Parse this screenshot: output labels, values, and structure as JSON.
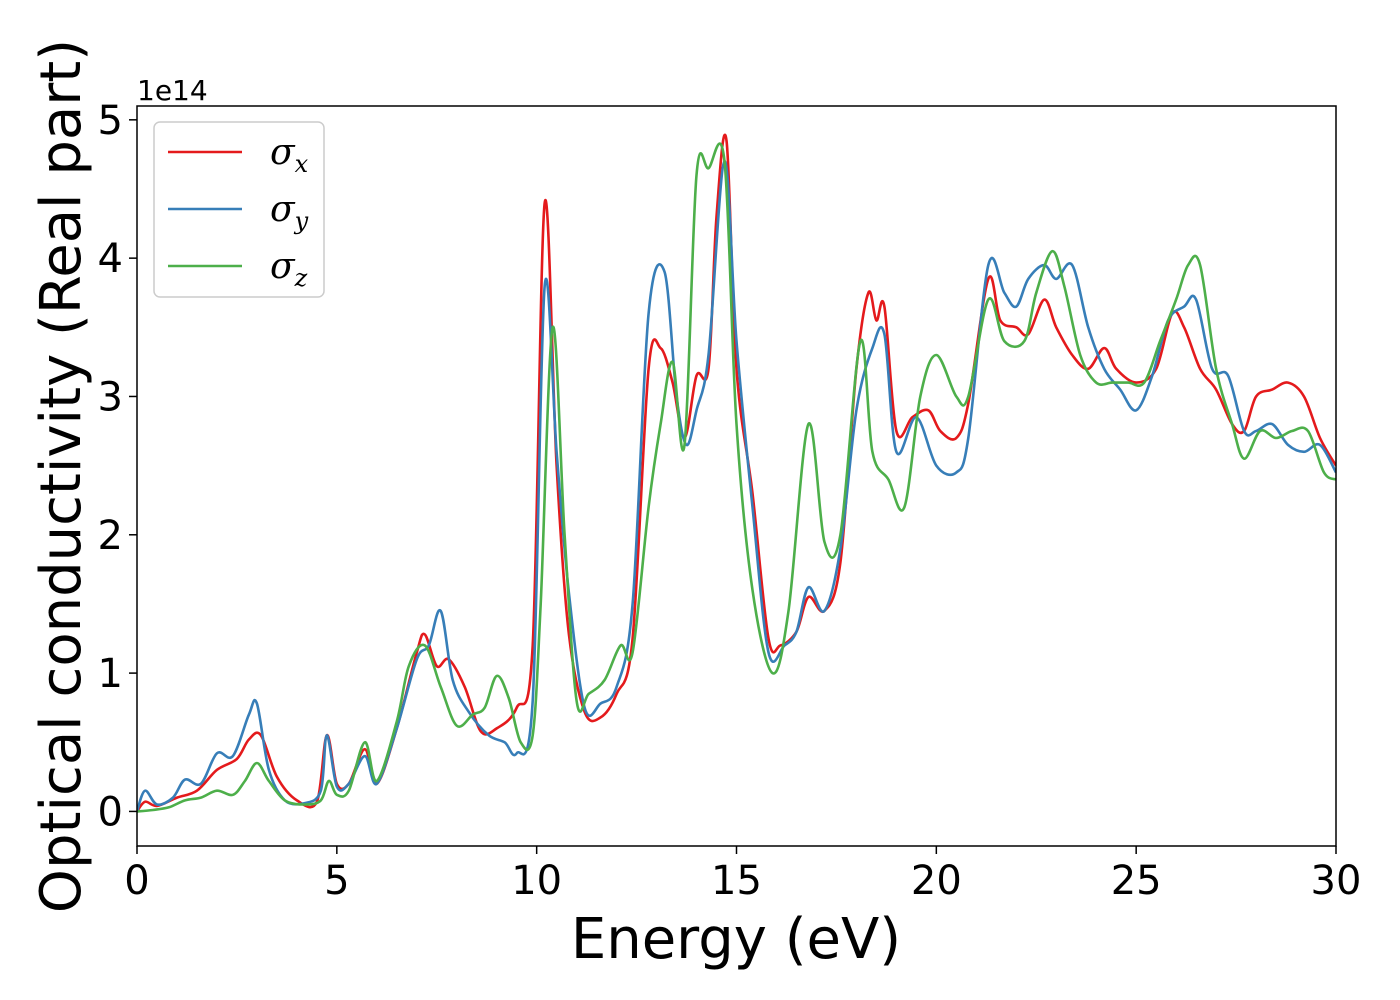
{
  "chart_data": {
    "type": "line",
    "title": "",
    "xlabel": "Energy (eV)",
    "ylabel": "Optical conductivity (Real part)",
    "y_offset_label": "1e14",
    "xlim": [
      0,
      30
    ],
    "ylim": [
      -0.25,
      5.1
    ],
    "xticks": [
      0,
      5,
      10,
      15,
      20,
      25,
      30
    ],
    "yticks": [
      0,
      1,
      2,
      3,
      4,
      5
    ],
    "grid": false,
    "legend_position": "top-left",
    "series": [
      {
        "name": "σx",
        "symbol": "σ",
        "subscript": "x",
        "color": "#e41a1c",
        "x": [
          0,
          0.2,
          0.5,
          1,
          1.5,
          2,
          2.5,
          2.8,
          3.1,
          3.5,
          4,
          4.5,
          4.75,
          5,
          5.3,
          5.7,
          6,
          6.5,
          7,
          7.2,
          7.5,
          7.8,
          8.2,
          8.6,
          9,
          9.5,
          9.9,
          10.2,
          10.5,
          10.8,
          11.2,
          11.6,
          12,
          12.4,
          12.8,
          13.1,
          13.4,
          13.7,
          14,
          14.3,
          14.5,
          14.75,
          15,
          15.4,
          15.8,
          16.1,
          16.5,
          16.8,
          17.2,
          17.6,
          18,
          18.3,
          18.5,
          18.7,
          19,
          19.4,
          19.8,
          20.1,
          20.5,
          20.8,
          21.3,
          21.6,
          22,
          22.3,
          22.7,
          23,
          23.4,
          23.8,
          24.2,
          24.5,
          25,
          25.5,
          25.9,
          26.2,
          26.6,
          27,
          27.4,
          27.7,
          28,
          28.4,
          28.8,
          29.2,
          29.6,
          30
        ],
        "y": [
          0,
          0.07,
          0.04,
          0.1,
          0.15,
          0.3,
          0.38,
          0.52,
          0.55,
          0.25,
          0.08,
          0.07,
          0.55,
          0.2,
          0.2,
          0.45,
          0.2,
          0.6,
          1.15,
          1.28,
          1.05,
          1.1,
          0.9,
          0.58,
          0.6,
          0.75,
          1.2,
          4.4,
          2.5,
          1.3,
          0.72,
          0.68,
          0.85,
          1.25,
          3.2,
          3.35,
          3.1,
          2.7,
          3.15,
          3.2,
          4.3,
          4.85,
          3.2,
          2.3,
          1.25,
          1.2,
          1.3,
          1.55,
          1.45,
          1.8,
          3.2,
          3.75,
          3.55,
          3.65,
          2.75,
          2.85,
          2.9,
          2.75,
          2.7,
          2.95,
          3.85,
          3.55,
          3.5,
          3.45,
          3.7,
          3.5,
          3.3,
          3.2,
          3.35,
          3.2,
          3.1,
          3.2,
          3.6,
          3.5,
          3.2,
          3.05,
          2.8,
          2.75,
          3.0,
          3.05,
          3.1,
          3.0,
          2.7,
          2.5
        ]
      },
      {
        "name": "σy",
        "symbol": "σ",
        "subscript": "y",
        "color": "#377eb8",
        "x": [
          0,
          0.2,
          0.5,
          0.9,
          1.2,
          1.6,
          2,
          2.4,
          2.8,
          3,
          3.3,
          3.7,
          4.2,
          4.6,
          4.75,
          5,
          5.3,
          5.7,
          6,
          6.5,
          7,
          7.3,
          7.6,
          7.9,
          8.3,
          8.8,
          9.2,
          9.5,
          9.9,
          10.2,
          10.5,
          10.8,
          11.2,
          11.6,
          12,
          12.4,
          12.8,
          13.2,
          13.5,
          13.75,
          14,
          14.3,
          14.7,
          15,
          15.4,
          15.8,
          16.2,
          16.5,
          16.8,
          17.2,
          17.6,
          18,
          18.4,
          18.7,
          19,
          19.5,
          20,
          20.5,
          20.8,
          21.3,
          21.7,
          22,
          22.3,
          22.7,
          23,
          23.4,
          23.8,
          24.2,
          24.6,
          25,
          25.4,
          25.8,
          26.2,
          26.5,
          26.9,
          27.3,
          27.7,
          28,
          28.4,
          28.8,
          29.2,
          29.6,
          30
        ],
        "y": [
          0,
          0.15,
          0.05,
          0.1,
          0.23,
          0.2,
          0.42,
          0.4,
          0.7,
          0.78,
          0.3,
          0.08,
          0.06,
          0.15,
          0.55,
          0.18,
          0.2,
          0.4,
          0.2,
          0.6,
          1.1,
          1.2,
          1.45,
          0.95,
          0.72,
          0.55,
          0.5,
          0.42,
          0.8,
          3.8,
          2.6,
          1.6,
          0.75,
          0.78,
          0.9,
          1.5,
          3.6,
          3.9,
          3.0,
          2.65,
          2.9,
          3.3,
          4.7,
          3.4,
          2.2,
          1.15,
          1.2,
          1.3,
          1.62,
          1.45,
          1.9,
          2.9,
          3.35,
          3.45,
          2.6,
          2.85,
          2.5,
          2.45,
          2.7,
          3.95,
          3.75,
          3.65,
          3.85,
          3.95,
          3.85,
          3.95,
          3.5,
          3.2,
          3.05,
          2.9,
          3.15,
          3.55,
          3.65,
          3.7,
          3.2,
          3.15,
          2.75,
          2.75,
          2.8,
          2.65,
          2.6,
          2.65,
          2.45
        ]
      },
      {
        "name": "σz",
        "symbol": "σ",
        "subscript": "z",
        "color": "#4daf4a",
        "x": [
          0,
          0.4,
          0.8,
          1.2,
          1.6,
          2,
          2.4,
          2.7,
          3,
          3.3,
          3.7,
          4.2,
          4.6,
          4.8,
          5,
          5.3,
          5.7,
          6,
          6.5,
          6.8,
          7.2,
          7.6,
          8,
          8.4,
          8.7,
          9,
          9.3,
          9.6,
          9.9,
          10.1,
          10.4,
          10.7,
          11,
          11.3,
          11.7,
          12.1,
          12.4,
          12.8,
          13.1,
          13.4,
          13.7,
          14,
          14.3,
          14.7,
          15,
          15.4,
          15.9,
          16.3,
          16.8,
          17.2,
          17.6,
          18.1,
          18.4,
          18.8,
          19.2,
          19.6,
          20,
          20.5,
          20.8,
          21.3,
          21.7,
          22.2,
          22.5,
          22.9,
          23.2,
          23.6,
          24,
          24.4,
          24.8,
          25.2,
          25.6,
          26,
          26.3,
          26.6,
          27,
          27.4,
          27.7,
          28.1,
          28.5,
          28.9,
          29.3,
          29.7,
          30
        ],
        "y": [
          0,
          0.01,
          0.03,
          0.08,
          0.1,
          0.15,
          0.12,
          0.22,
          0.35,
          0.22,
          0.08,
          0.05,
          0.08,
          0.22,
          0.12,
          0.15,
          0.5,
          0.22,
          0.65,
          1.05,
          1.2,
          0.9,
          0.62,
          0.7,
          0.75,
          0.98,
          0.82,
          0.5,
          0.55,
          1.5,
          3.5,
          2.0,
          0.8,
          0.85,
          0.95,
          1.2,
          1.15,
          2.2,
          2.8,
          3.25,
          2.65,
          4.6,
          4.65,
          4.7,
          2.8,
          1.6,
          1.0,
          1.45,
          2.8,
          1.95,
          2.0,
          3.4,
          2.6,
          2.4,
          2.2,
          3.0,
          3.3,
          3.0,
          3.0,
          3.7,
          3.4,
          3.4,
          3.75,
          4.05,
          3.8,
          3.3,
          3.1,
          3.1,
          3.1,
          3.1,
          3.4,
          3.7,
          3.95,
          3.95,
          3.2,
          2.8,
          2.55,
          2.75,
          2.7,
          2.75,
          2.75,
          2.45,
          2.4
        ]
      }
    ]
  }
}
